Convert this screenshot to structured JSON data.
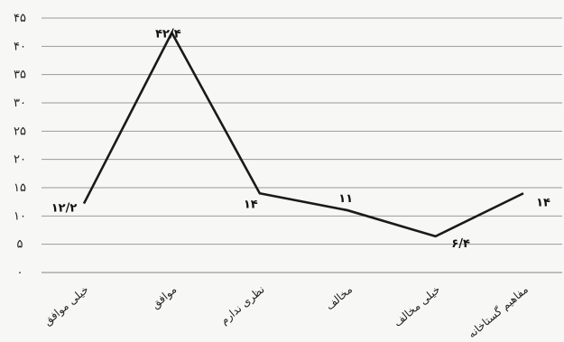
{
  "chart_data": {
    "type": "line",
    "categories": [
      "خیلی موافق",
      "موافق",
      "نظری ندارم",
      "مخالف",
      "خیلی مخالف",
      "مفاهیم گستاخانه"
    ],
    "values": [
      12.2,
      42.4,
      14,
      11,
      6.4,
      14
    ],
    "value_labels": [
      "۱۲/۲",
      "۴۲/۴",
      "۱۴",
      "۱۱",
      "۶/۴",
      "۱۴"
    ],
    "yticks": [
      0,
      5,
      10,
      15,
      20,
      25,
      30,
      35,
      40,
      45
    ],
    "ytick_labels": [
      "۰",
      "۵",
      "۱۰",
      "۱۵",
      "۲۰",
      "۲۵",
      "۳۰",
      "۳۵",
      "۴۰",
      "۴۵"
    ],
    "ylim": [
      0,
      45
    ],
    "grid": true,
    "colors": {
      "line": "#1a1a1a",
      "grid": "#9a9a9a",
      "text": "#222222"
    }
  }
}
